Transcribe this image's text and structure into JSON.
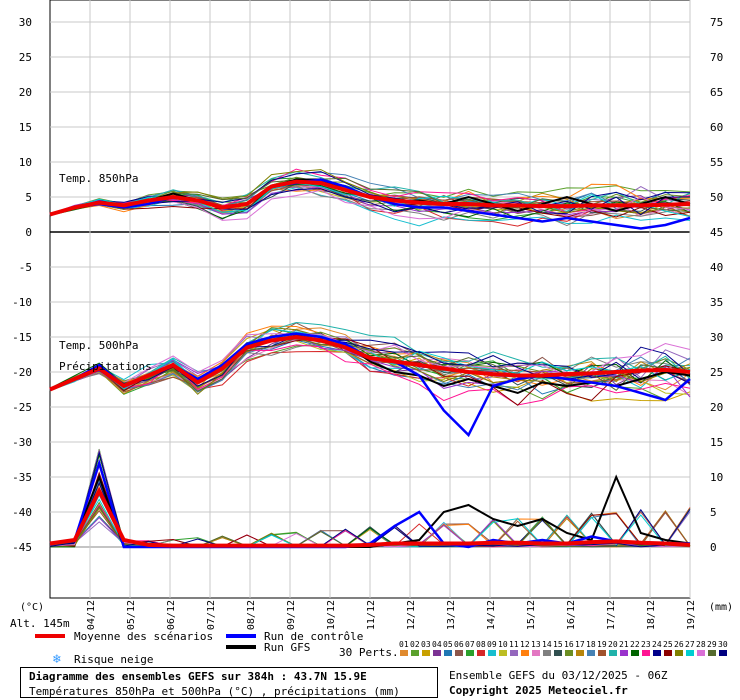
{
  "chart_data": {
    "type": "line",
    "series_count_label": "30 Perts.",
    "left_axis": {
      "unit": "(°C)",
      "ticks": [
        "30",
        "25",
        "20",
        "15",
        "10",
        "5",
        "0",
        "-5",
        "-10",
        "-15",
        "-20",
        "-25",
        "-30",
        "-35",
        "-40",
        "-45"
      ],
      "ylim": [
        -45,
        30
      ]
    },
    "right_axis": {
      "unit": "(mm)",
      "ticks": [
        "75",
        "70",
        "65",
        "60",
        "55",
        "50",
        "45",
        "40",
        "35",
        "30",
        "25",
        "20",
        "15",
        "10",
        "5",
        "0"
      ],
      "ylim": [
        0,
        75
      ]
    },
    "x_labels": [
      "04/12",
      "05/12",
      "06/12",
      "07/12",
      "08/12",
      "09/12",
      "10/12",
      "11/12",
      "12/12",
      "13/12",
      "14/12",
      "15/12",
      "16/12",
      "17/12",
      "18/12",
      "19/12"
    ],
    "annotations": {
      "t850": "Temp. 850hPa",
      "t500": "Temp. 500hPa",
      "precip": "Précipitations",
      "altitude": "Alt. 145m"
    },
    "mean_t850": [
      2.5,
      3.5,
      4.2,
      3.8,
      4.5,
      5.0,
      4.5,
      3.5,
      4.0,
      6.5,
      7.2,
      7.0,
      6.0,
      5.0,
      4.5,
      4.2,
      4.0,
      4.0,
      3.8,
      3.8,
      3.7,
      3.7,
      3.8,
      3.8,
      3.8,
      3.9,
      4.0
    ],
    "mean_t500": [
      -22.5,
      -21.0,
      -19.5,
      -22.0,
      -20.5,
      -19.0,
      -21.5,
      -19.5,
      -16.5,
      -15.5,
      -15.0,
      -15.5,
      -16.5,
      -18.0,
      -18.5,
      -19.0,
      -19.5,
      -20.0,
      -20.3,
      -20.5,
      -20.5,
      -20.3,
      -20.2,
      -20.0,
      -19.8,
      -19.7,
      -20.0
    ],
    "mean_precip": [
      0.5,
      1,
      8,
      1,
      0.3,
      0.2,
      0.2,
      0.2,
      0.2,
      0.2,
      0.2,
      0.2,
      0.2,
      0.3,
      0.5,
      0.5,
      0.5,
      0.5,
      0.6,
      0.6,
      0.5,
      0.5,
      0.7,
      0.8,
      0.6,
      0.5,
      0.3
    ],
    "control_t850": [
      2.5,
      3.5,
      4.0,
      3.5,
      4.0,
      5.0,
      4.5,
      3.5,
      4.0,
      6.5,
      7.0,
      7.5,
      6.5,
      5.0,
      4.0,
      3.5,
      3.5,
      3.0,
      2.5,
      2.0,
      1.5,
      2.0,
      1.5,
      1.0,
      0.5,
      1.0,
      2.0
    ],
    "control_t500": [
      -22.5,
      -21.0,
      -19.0,
      -22.0,
      -20.5,
      -19.0,
      -21.0,
      -19.0,
      -16.0,
      -15.0,
      -14.5,
      -15.0,
      -16.0,
      -18.0,
      -18.5,
      -20.5,
      -25.5,
      -29.0,
      -22.0,
      -21.0,
      -20.5,
      -21.0,
      -21.5,
      -22.0,
      -23.0,
      -24.0,
      -21.0
    ],
    "control_precip": [
      0.5,
      1,
      12,
      0,
      0,
      0,
      0,
      0,
      0,
      0,
      0,
      0,
      0,
      0.5,
      3,
      5,
      0.5,
      0,
      1,
      0.5,
      1,
      0.5,
      1.5,
      0.8,
      0.5,
      0.5,
      0.5
    ],
    "gfs_t850": [
      2.5,
      3.5,
      4.2,
      3.8,
      4.5,
      5.5,
      4.5,
      3.5,
      4.0,
      6.5,
      7.5,
      7.5,
      6.0,
      5.0,
      4.5,
      4.5,
      4.0,
      5.0,
      4.0,
      3.0,
      4.0,
      5.0,
      4.0,
      3.0,
      4.0,
      5.0,
      4.0
    ],
    "gfs_t500": [
      -22.5,
      -21.0,
      -19.5,
      -22.0,
      -20.5,
      -19.0,
      -21.5,
      -19.0,
      -16.0,
      -15.0,
      -14.5,
      -15.0,
      -16.0,
      -18.5,
      -20.0,
      -20.5,
      -22.0,
      -21.0,
      -22.0,
      -23.0,
      -21.5,
      -22.0,
      -21.5,
      -22.0,
      -21.0,
      -20.0,
      -20.5
    ],
    "gfs_precip": [
      0.5,
      1,
      10,
      0,
      0,
      0,
      0,
      0,
      0,
      0,
      0,
      0,
      0,
      0,
      0.5,
      1,
      5,
      6,
      4,
      3,
      4,
      2,
      1,
      10,
      2,
      1,
      0.5
    ],
    "grid": true
  },
  "legend": {
    "mean_label": "Moyenne des scénarios",
    "control_label": "Run de contrôle",
    "gfs_label": "Run GFS",
    "snow_label": "Risque neige",
    "perts_label": "30 Perts.",
    "pert_numbers": [
      "01",
      "02",
      "03",
      "04",
      "05",
      "06",
      "07",
      "08",
      "09",
      "10",
      "11",
      "12",
      "13",
      "14",
      "15",
      "16",
      "17",
      "18",
      "19",
      "20",
      "21",
      "22",
      "23",
      "24",
      "25",
      "26",
      "27",
      "28",
      "29",
      "30"
    ],
    "pert_colors": [
      "#e08a2e",
      "#5aa02c",
      "#c8a000",
      "#7b3294",
      "#1f77b4",
      "#8c564b",
      "#2ca02c",
      "#d62728",
      "#17becf",
      "#bcbd22",
      "#9467bd",
      "#ff7f0e",
      "#e377c2",
      "#7f7f7f",
      "#2f4f4f",
      "#6b8e23",
      "#b8860b",
      "#4682b4",
      "#a0522d",
      "#20b2aa",
      "#9932cc",
      "#006400",
      "#ff1493",
      "#00008b",
      "#8b0000",
      "#808000",
      "#00ced1",
      "#da70d6",
      "#556b2f",
      "#000080"
    ],
    "mean_color": "#ee0000",
    "control_color": "#0000ff",
    "gfs_color": "#000000"
  },
  "footer": {
    "title": "Diagramme des ensembles GEFS sur 384h : 43.7N 15.9E",
    "subtitle": "Températures 850hPa et 500hPa (°C) , précipitations (mm)",
    "ensemble": "Ensemble GEFS du 03/12/2025 - 06Z",
    "copyright": "Copyright 2025 Meteociel.fr"
  }
}
